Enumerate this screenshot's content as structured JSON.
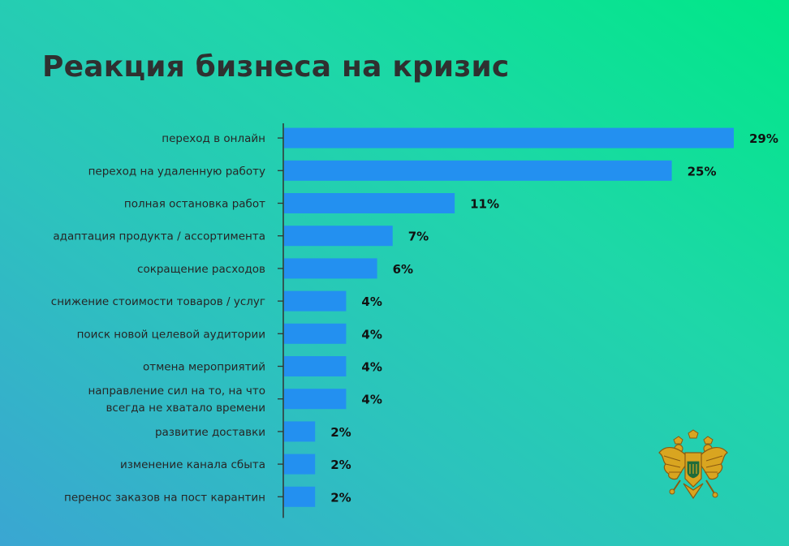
{
  "title": "Реакция бизнеса на кризис",
  "chart_data": {
    "type": "bar",
    "orientation": "horizontal",
    "title": "Реакция бизнеса на кризис",
    "categories": [
      "переход в онлайн",
      "переход на удаленную работу",
      "полная остановка работ",
      "адаптация продукта / ассортимента",
      "сокращение расходов",
      "снижение стоимости товаров / услуг",
      "поиск новой целевой аудитории",
      "отмена мероприятий",
      "направление сил на то, на что всегда не хватало времени",
      "развитие доставки",
      "изменение канала сбыта",
      "перенос заказов на пост карантин"
    ],
    "category_lines": [
      [
        "переход в онлайн"
      ],
      [
        "переход на удаленную работу"
      ],
      [
        "полная остановка работ"
      ],
      [
        "адаптация продукта / ассортимента"
      ],
      [
        "сокращение расходов"
      ],
      [
        "снижение стоимости товаров / услуг"
      ],
      [
        "поиск новой целевой аудитории"
      ],
      [
        "отмена мероприятий"
      ],
      [
        "направление сил на то, на что",
        "всегда не хватало времени"
      ],
      [
        "развитие доставки"
      ],
      [
        "изменение канала сбыта"
      ],
      [
        "перенос заказов на пост карантин"
      ]
    ],
    "values": [
      29,
      25,
      11,
      7,
      6,
      4,
      4,
      4,
      4,
      2,
      2,
      2
    ],
    "value_labels": [
      "29%",
      "25%",
      "11%",
      "7%",
      "6%",
      "4%",
      "4%",
      "4%",
      "4%",
      "2%",
      "2%",
      "2%"
    ],
    "unit": "%",
    "xlim": [
      0,
      29
    ],
    "grid": false,
    "legend": "none",
    "bar_color": "#2390f0",
    "axis_color": "#333333"
  },
  "emblem": {
    "icon": "russian-double-headed-eagle-icon",
    "colors": [
      "#d9a520",
      "#8a5a10",
      "#1f6b3a"
    ]
  }
}
